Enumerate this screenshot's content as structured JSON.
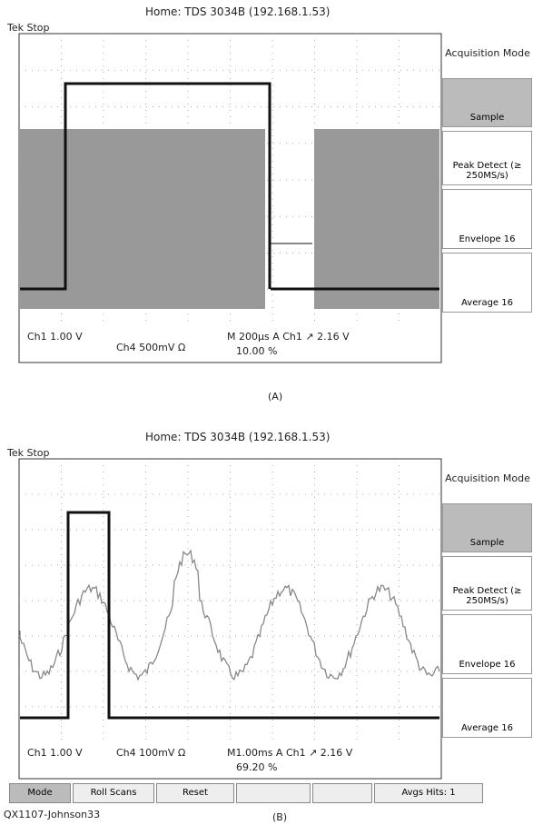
{
  "panels": [
    {
      "header": "Home: TDS 3034B   (192.168.1.53)",
      "status": "Tek Stop",
      "menu": {
        "title": "Acquisition Mode",
        "items": [
          "Sample",
          "Peak Detect (≥ 250MS/s)",
          "Envelope 16",
          "Average 16"
        ]
      },
      "readouts": [
        "Ch1  1.00 V",
        "Ch4  500mV Ω",
        "M 200µs A  Ch1 ↗  2.16 V",
        "10.00 %"
      ],
      "caption": "(A)"
    },
    {
      "header": "Home: TDS 3034B   (192.168.1.53)",
      "status": "Tek Stop",
      "menu": {
        "title": "Acquisition Mode",
        "items": [
          "Sample",
          "Peak Detect (≥ 250MS/s)",
          "Envelope 16",
          "Average 16"
        ]
      },
      "readouts": [
        "Ch1  1.00 V",
        "Ch4  100mV Ω",
        "M1.00ms A  Ch1 ↗  2.16 V",
        "69.20 %"
      ],
      "caption": "(B)"
    }
  ],
  "buttons": [
    "Mode",
    "Roll Scans",
    "Reset",
    "Avgs Hits: 1"
  ],
  "footer": "QX1107-Johnson33"
}
